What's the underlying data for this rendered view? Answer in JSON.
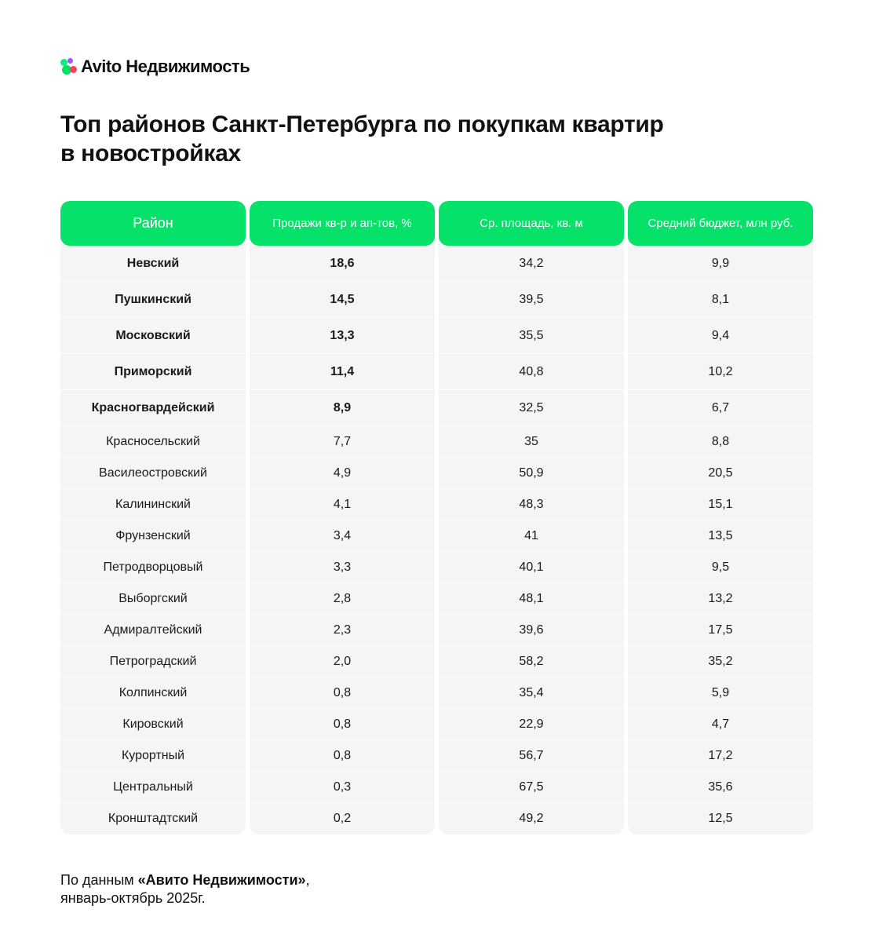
{
  "brand": {
    "name": "Avito Недвижимость"
  },
  "title": {
    "line1": "Топ районов Санкт-Петербурга по покупкам квартир",
    "line2": "в новостройках"
  },
  "table": {
    "headers": [
      "Район",
      "Продажи кв-р и ап-тов, %",
      "Ср. площадь, кв. м",
      "Средний бюджет, млн руб."
    ],
    "rows": [
      [
        "Невский",
        "18,6",
        "34,2",
        "9,9"
      ],
      [
        "Пушкинский",
        "14,5",
        "39,5",
        "8,1"
      ],
      [
        "Московский",
        "13,3",
        "35,5",
        "9,4"
      ],
      [
        "Приморский",
        "11,4",
        "40,8",
        "10,2"
      ],
      [
        "Красногвардейский",
        "8,9",
        "32,5",
        "6,7"
      ],
      [
        "Красносельский",
        "7,7",
        "35",
        "8,8"
      ],
      [
        "Василеостровский",
        "4,9",
        "50,9",
        "20,5"
      ],
      [
        "Калининский",
        "4,1",
        "48,3",
        "15,1"
      ],
      [
        "Фрунзенский",
        "3,4",
        "41",
        "13,5"
      ],
      [
        "Петродворцовый",
        "3,3",
        "40,1",
        "9,5"
      ],
      [
        "Выборгский",
        "2,8",
        "48,1",
        "13,2"
      ],
      [
        "Адмиралтейский",
        "2,3",
        "39,6",
        "17,5"
      ],
      [
        "Петроградский",
        "2,0",
        "58,2",
        "35,2"
      ],
      [
        "Колпинский",
        "0,8",
        "35,4",
        "5,9"
      ],
      [
        "Кировский",
        "0,8",
        "22,9",
        "4,7"
      ],
      [
        "Курортный",
        "0,8",
        "56,7",
        "17,2"
      ],
      [
        "Центральный",
        "0,3",
        "67,5",
        "35,6"
      ],
      [
        "Кронштадтский",
        "0,2",
        "49,2",
        "12,5"
      ]
    ]
  },
  "footer": {
    "prefix": "По данным ",
    "source": "«Авито Недвижимости»",
    "suffix": ",",
    "period": "январь-октябрь 2025г."
  },
  "colors": {
    "accent": "#06e16a",
    "cell_bg": "#f5f5f5"
  }
}
